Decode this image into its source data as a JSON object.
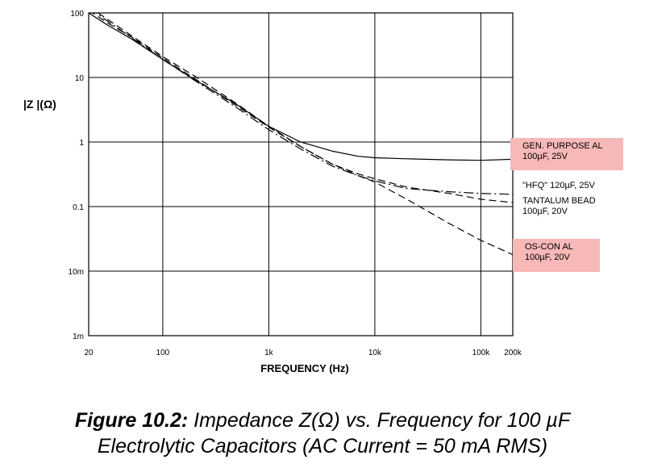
{
  "chart_data": {
    "type": "line",
    "x_scale": "log",
    "y_scale": "log",
    "xlim": [
      20,
      200000
    ],
    "ylim": [
      0.001,
      100
    ],
    "grid": true,
    "xlabel": "FREQUENCY (Hz)",
    "ylabel": "|Z |(Ω)",
    "x_ticks": [
      {
        "value": 20,
        "label": "20"
      },
      {
        "value": 100,
        "label": "100"
      },
      {
        "value": 1000,
        "label": "1k"
      },
      {
        "value": 10000,
        "label": "10k"
      },
      {
        "value": 100000,
        "label": "100k"
      },
      {
        "value": 200000,
        "label": "200k"
      }
    ],
    "y_ticks": [
      {
        "value": 100,
        "label": "100"
      },
      {
        "value": 10,
        "label": "10"
      },
      {
        "value": 1,
        "label": "1"
      },
      {
        "value": 0.1,
        "label": "0.1"
      },
      {
        "value": 0.01,
        "label": "10m"
      },
      {
        "value": 0.001,
        "label": "1m"
      }
    ],
    "series": [
      {
        "name": "GEN. PURPOSE AL 100µF, 25V",
        "label_lines": [
          "GEN. PURPOSE AL",
          "100µF, 25V"
        ],
        "highlight": true,
        "style": "solid",
        "x": [
          20,
          30,
          50,
          100,
          200,
          500,
          1000,
          2000,
          4000,
          7000,
          10000,
          20000,
          50000,
          100000,
          200000
        ],
        "y": [
          100,
          65,
          40,
          19,
          9.2,
          3.8,
          1.75,
          1.0,
          0.72,
          0.6,
          0.57,
          0.55,
          0.53,
          0.52,
          0.54
        ]
      },
      {
        "name": "\"HFQ\" 120µF, 25V",
        "label_lines": [
          "\"HFQ\" 120µF, 25V"
        ],
        "highlight": false,
        "style": "dashdot",
        "x": [
          20,
          30,
          50,
          100,
          200,
          500,
          1000,
          2000,
          4000,
          7000,
          10000,
          20000,
          50000,
          100000,
          200000
        ],
        "y": [
          120,
          75,
          42,
          19,
          9.0,
          3.4,
          1.55,
          0.78,
          0.42,
          0.3,
          0.25,
          0.19,
          0.17,
          0.16,
          0.155
        ]
      },
      {
        "name": "TANTALUM BEAD 100µF, 20V",
        "label_lines": [
          "TANTALUM BEAD",
          "100µF, 20V"
        ],
        "highlight": false,
        "style": "dashed",
        "x": [
          20,
          30,
          50,
          100,
          200,
          500,
          1000,
          2000,
          4000,
          7000,
          10000,
          20000,
          50000,
          100000,
          200000
        ],
        "y": [
          125,
          80,
          45,
          21,
          10.5,
          3.9,
          1.75,
          0.85,
          0.45,
          0.32,
          0.27,
          0.2,
          0.16,
          0.13,
          0.115
        ]
      },
      {
        "name": "OS-CON AL 100µF, 20V",
        "label_lines": [
          "OS-CON AL",
          "100µF, 20V"
        ],
        "highlight": true,
        "style": "dashed",
        "x": [
          20,
          30,
          50,
          100,
          200,
          500,
          1000,
          2000,
          4000,
          7000,
          10000,
          20000,
          50000,
          100000,
          200000
        ],
        "y": [
          110,
          70,
          43,
          20,
          9.6,
          3.6,
          1.7,
          0.85,
          0.45,
          0.3,
          0.24,
          0.13,
          0.055,
          0.03,
          0.018
        ]
      }
    ]
  },
  "caption": {
    "line1_bold": "Figure 10.2:",
    "line1_rest": "  Impedance Z(Ω) vs. Frequency for 100 µF",
    "line2": "Electrolytic Capacitors (AC Current = 50 mA RMS)"
  },
  "colors": {
    "highlight": "#f7b8b8",
    "line": "#000000",
    "grid": "#000000"
  }
}
